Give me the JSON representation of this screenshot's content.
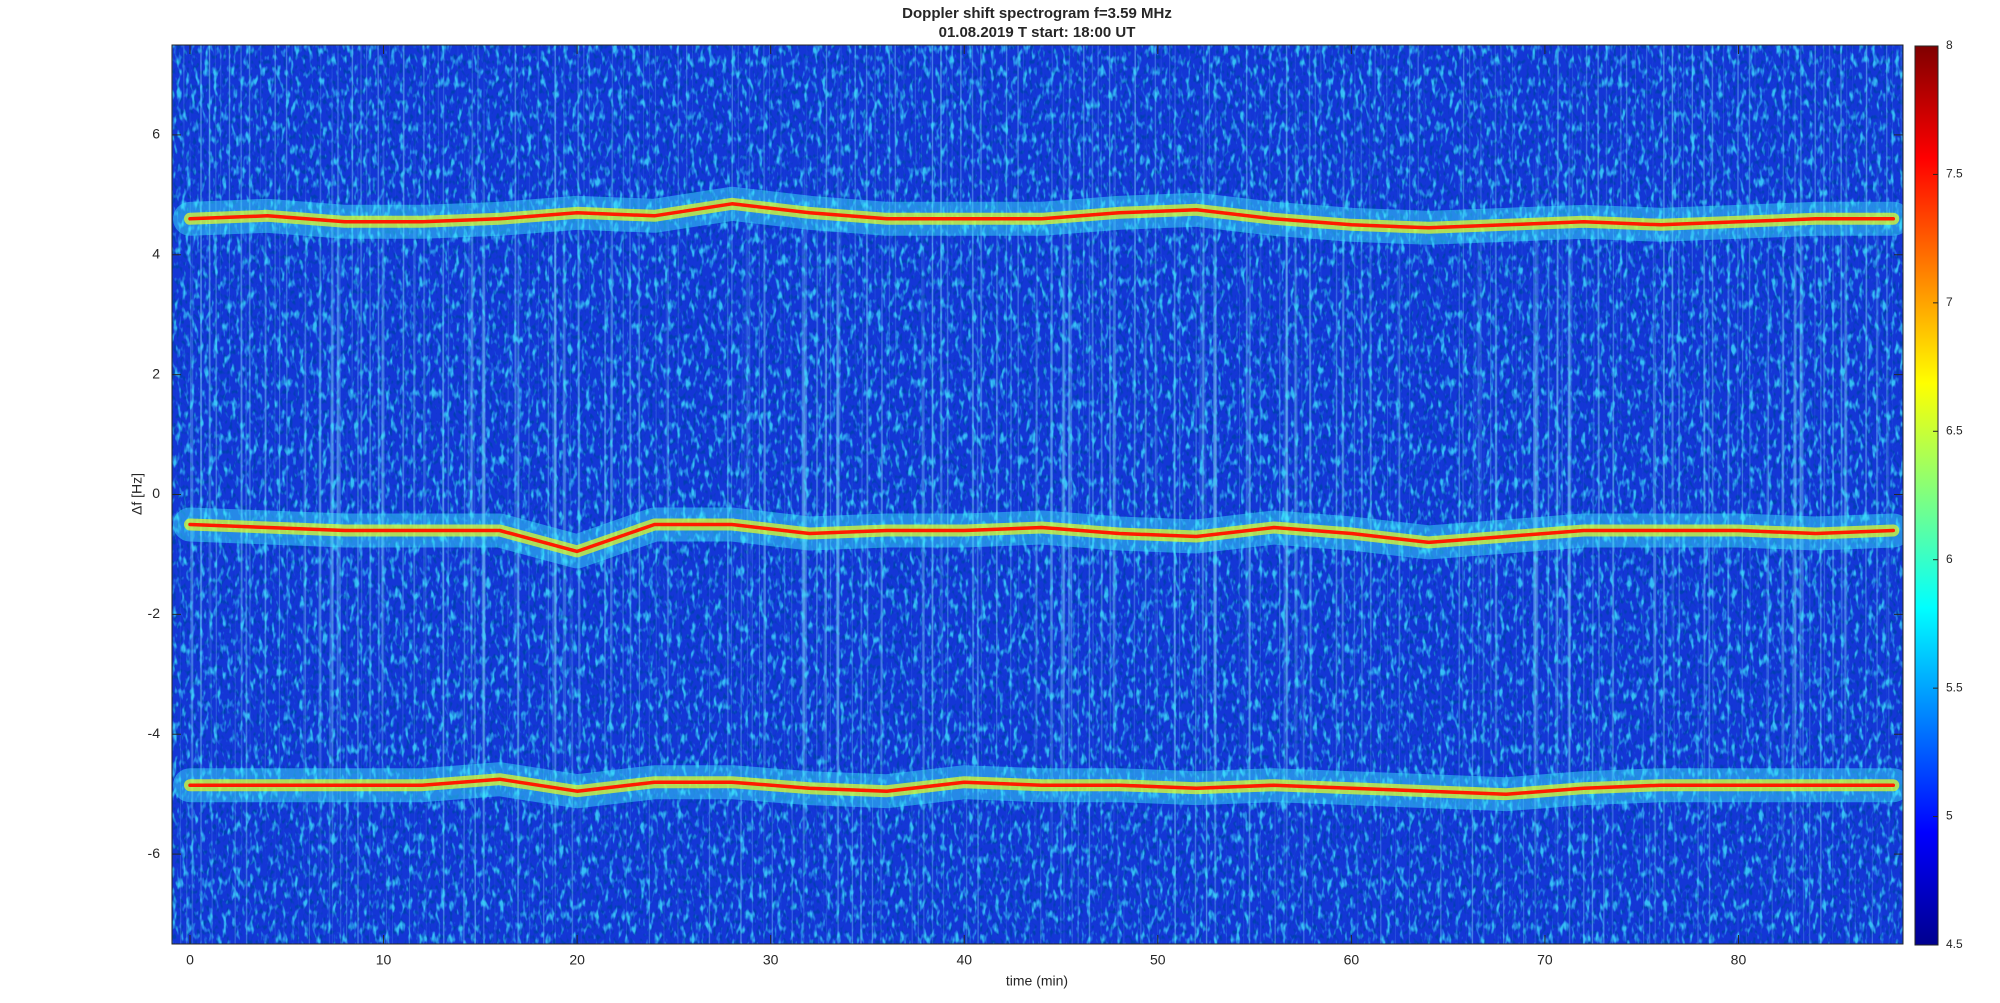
{
  "chart_data": {
    "type": "spectrogram",
    "title": "Doppler shift spectrogram f=3.59 MHz",
    "subtitle": "01.08.2019   T start: 18:00 UT",
    "x_label": "time (min)",
    "y_label": "Δf [Hz]",
    "xlim": [
      -0.93,
      88.5
    ],
    "ylim": [
      -7.5,
      7.5
    ],
    "xticks": [
      0,
      10,
      20,
      30,
      40,
      50,
      60,
      70,
      80
    ],
    "yticks": [
      -6,
      -4,
      -2,
      0,
      2,
      4,
      6
    ],
    "x": [
      0,
      4,
      8,
      12,
      16,
      20,
      24,
      28,
      32,
      36,
      40,
      44,
      48,
      52,
      56,
      60,
      64,
      68,
      72,
      76,
      80,
      84,
      88
    ],
    "series": [
      {
        "color": "#ff1a00",
        "values": [
          4.6,
          4.65,
          4.55,
          4.55,
          4.6,
          4.7,
          4.65,
          4.85,
          4.7,
          4.6,
          4.6,
          4.6,
          4.7,
          4.75,
          4.6,
          4.5,
          4.45,
          4.5,
          4.55,
          4.5,
          4.55,
          4.6,
          4.6
        ]
      },
      {
        "color": "#ff1a00",
        "values": [
          -0.5,
          -0.55,
          -0.6,
          -0.6,
          -0.6,
          -0.95,
          -0.5,
          -0.5,
          -0.65,
          -0.6,
          -0.6,
          -0.55,
          -0.65,
          -0.7,
          -0.55,
          -0.65,
          -0.8,
          -0.7,
          -0.6,
          -0.6,
          -0.6,
          -0.65,
          -0.6
        ]
      },
      {
        "color": "#ff1a00",
        "values": [
          -4.85,
          -4.85,
          -4.85,
          -4.85,
          -4.75,
          -4.95,
          -4.8,
          -4.8,
          -4.9,
          -4.95,
          -4.8,
          -4.85,
          -4.85,
          -4.9,
          -4.85,
          -4.9,
          -4.95,
          -5.0,
          -4.9,
          -4.85,
          -4.85,
          -4.85,
          -4.85
        ]
      }
    ],
    "colorbar": {
      "lim": [
        4.5,
        8
      ],
      "ticks": [
        4.5,
        5,
        5.5,
        6,
        6.5,
        7,
        7.5,
        8
      ],
      "colormap": "jet"
    }
  }
}
